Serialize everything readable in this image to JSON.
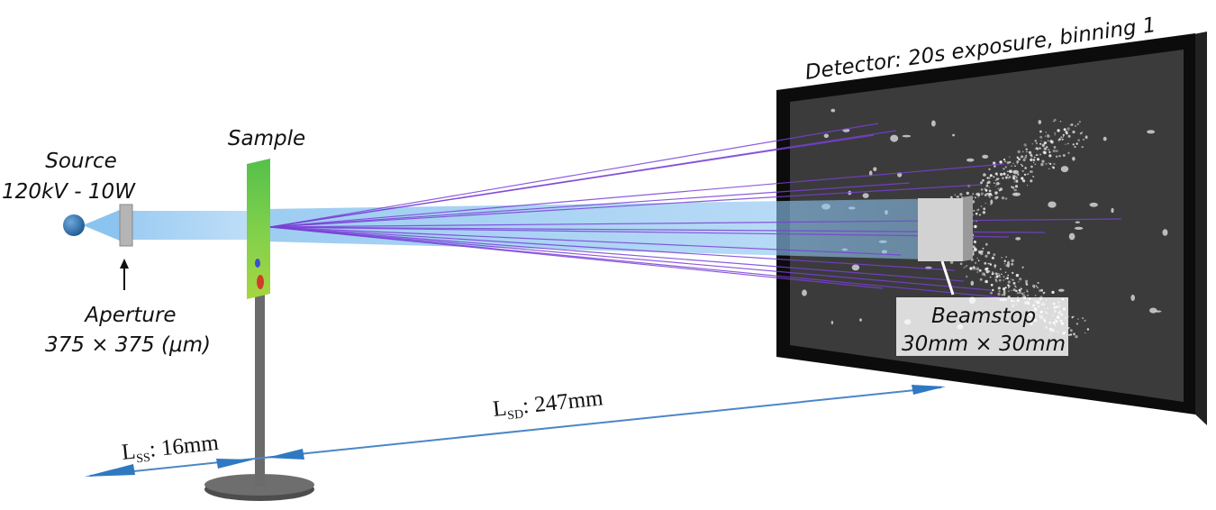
{
  "labels": {
    "source": {
      "name": "Source",
      "spec": "120kV - 10W"
    },
    "sample": "Sample",
    "aperture": {
      "name": "Aperture",
      "size": "375 × 375 (μm)"
    },
    "detector": "Detector: 20s exposure, binning 1",
    "beamstop": {
      "name": "Beamstop",
      "size": "30mm × 30mm"
    },
    "distances": [
      {
        "symbol": "L",
        "subscript": "SS",
        "value": ": 16mm"
      },
      {
        "symbol": "L",
        "subscript": "SD",
        "value": ": 247mm"
      }
    ]
  }
}
